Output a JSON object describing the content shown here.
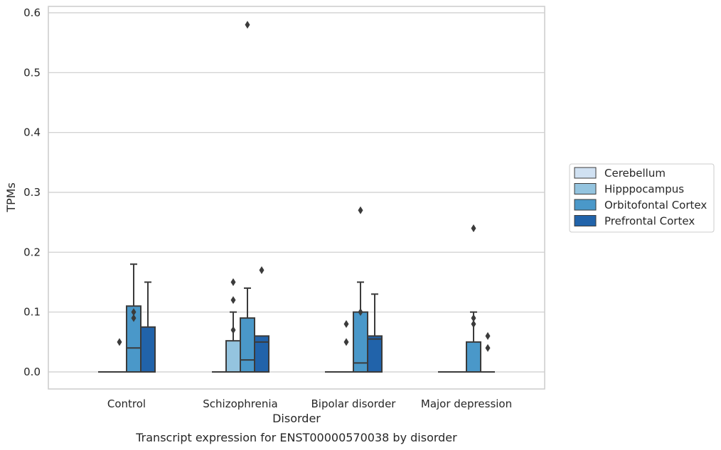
{
  "chart_data": {
    "type": "box",
    "title": "",
    "caption": "Transcript expression for ENST00000570038 by disorder",
    "xlabel": "Disorder",
    "ylabel": "TPMs",
    "ylim": [
      -0.03,
      0.612
    ],
    "yticks": [
      0.0,
      0.1,
      0.2,
      0.3,
      0.4,
      0.5,
      0.6
    ],
    "ytick_labels": [
      "0.0",
      "0.1",
      "0.2",
      "0.3",
      "0.4",
      "0.5",
      "0.6"
    ],
    "grid": "horizontal",
    "legend_position": "right",
    "categories": [
      "Control",
      "Schizophrenia",
      "Bipolar disorder",
      "Major depression"
    ],
    "series": [
      {
        "name": "Cerebellum",
        "color": "#d0e1f2",
        "boxes": [
          {
            "min": 0,
            "q1": 0,
            "median": 0,
            "q3": 0,
            "max": 0,
            "outliers": []
          },
          {
            "min": 0,
            "q1": 0,
            "median": 0,
            "q3": 0,
            "max": 0,
            "outliers": []
          },
          {
            "min": 0,
            "q1": 0,
            "median": 0,
            "q3": 0,
            "max": 0,
            "outliers": []
          },
          {
            "min": 0,
            "q1": 0,
            "median": 0,
            "q3": 0,
            "max": 0,
            "outliers": []
          }
        ]
      },
      {
        "name": "Hipppocampus",
        "color": "#94c4df",
        "boxes": [
          {
            "min": 0,
            "q1": 0,
            "median": 0,
            "q3": 0,
            "max": 0,
            "outliers": [
              0.05
            ]
          },
          {
            "min": 0,
            "q1": 0,
            "median": 0,
            "q3": 0.052,
            "max": 0.1,
            "outliers": [
              0.07,
              0.12,
              0.15
            ]
          },
          {
            "min": 0,
            "q1": 0,
            "median": 0,
            "q3": 0,
            "max": 0,
            "outliers": [
              0.05,
              0.08
            ]
          },
          {
            "min": 0,
            "q1": 0,
            "median": 0,
            "q3": 0,
            "max": 0,
            "outliers": []
          }
        ]
      },
      {
        "name": "Orbitofontal Cortex",
        "color": "#4a98c9",
        "boxes": [
          {
            "min": 0,
            "q1": 0,
            "median": 0.04,
            "q3": 0.11,
            "max": 0.18,
            "outliers": [
              0.09,
              0.1
            ]
          },
          {
            "min": 0,
            "q1": 0,
            "median": 0.02,
            "q3": 0.09,
            "max": 0.14,
            "outliers": [
              0.58
            ]
          },
          {
            "min": 0,
            "q1": 0,
            "median": 0.015,
            "q3": 0.1,
            "max": 0.15,
            "outliers": [
              0.1,
              0.27
            ]
          },
          {
            "min": 0,
            "q1": 0,
            "median": 0,
            "q3": 0.05,
            "max": 0.1,
            "outliers": [
              0.08,
              0.09,
              0.24
            ]
          }
        ]
      },
      {
        "name": "Prefrontal Cortex",
        "color": "#2163aa",
        "boxes": [
          {
            "min": 0,
            "q1": 0,
            "median": 0,
            "q3": 0.075,
            "max": 0.15,
            "outliers": []
          },
          {
            "min": 0,
            "q1": 0,
            "median": 0.05,
            "q3": 0.06,
            "max": 0.06,
            "outliers": [
              0.17
            ]
          },
          {
            "min": 0,
            "q1": 0,
            "median": 0.055,
            "q3": 0.06,
            "max": 0.13,
            "outliers": []
          },
          {
            "min": 0,
            "q1": 0,
            "median": 0,
            "q3": 0,
            "max": 0,
            "outliers": [
              0.04,
              0.06
            ]
          }
        ]
      }
    ]
  }
}
